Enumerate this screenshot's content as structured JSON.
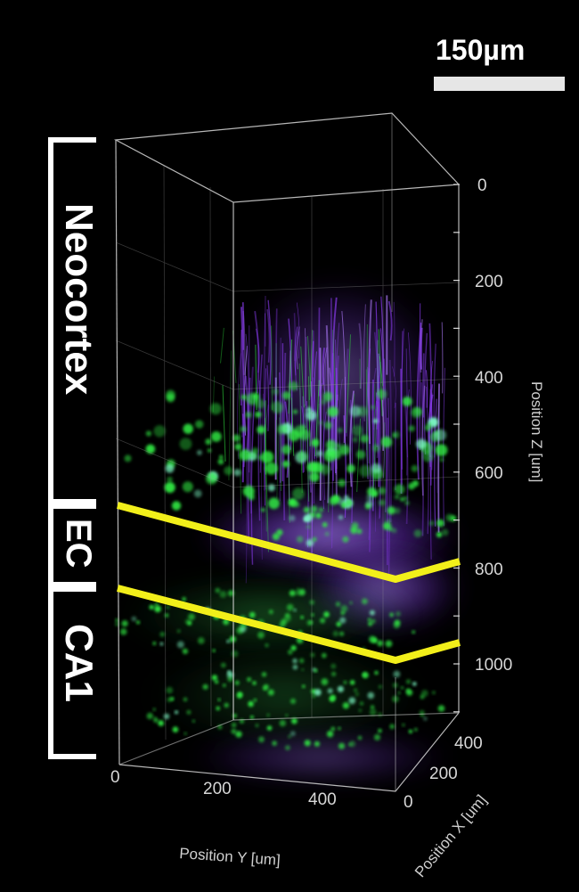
{
  "scale_bar": {
    "label": "150µm"
  },
  "regions": {
    "neocortex": "Neocortex",
    "ec": "EC",
    "ca1": "CA1"
  },
  "axes": {
    "z_title": "Position Z [um]",
    "y_title": "Position Y [um]",
    "x_title": "Position X [um]",
    "z_ticks": [
      "0",
      "200",
      "400",
      "600",
      "800",
      "1000"
    ],
    "y_ticks": [
      "0",
      "200",
      "400"
    ],
    "x_ticks": [
      "400",
      "200",
      "0"
    ]
  },
  "colors": {
    "background": "#000000",
    "boundary_lines": "#f2ef1a",
    "green_channel": "#33ee44",
    "purple_channel": "#8a3cf0",
    "box_edges": "#d8d8d8"
  }
}
